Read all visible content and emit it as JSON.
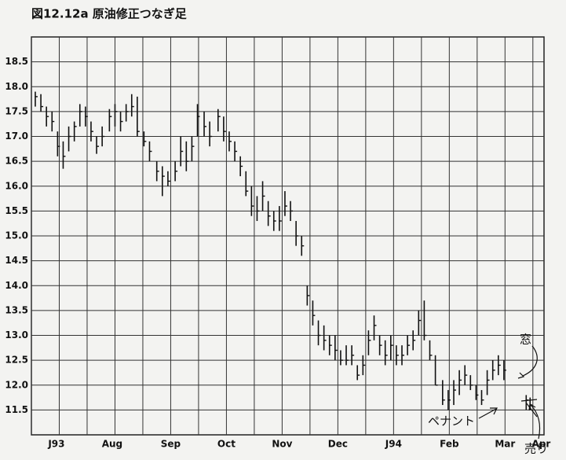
{
  "chart_data": {
    "type": "ohlc",
    "title": "図12.12a 原油修正つなぎ足",
    "color": "#111111",
    "grid": true,
    "xlim": [
      0,
      9.2
    ],
    "ylim": [
      11.0,
      19.0
    ],
    "xticks": [
      {
        "value": 0.45,
        "label": "J93"
      },
      {
        "value": 1.45,
        "label": "Aug"
      },
      {
        "value": 2.5,
        "label": "Sep"
      },
      {
        "value": 3.5,
        "label": "Oct"
      },
      {
        "value": 4.5,
        "label": "Nov"
      },
      {
        "value": 5.5,
        "label": "Dec"
      },
      {
        "value": 6.5,
        "label": "J94"
      },
      {
        "value": 7.5,
        "label": "Feb"
      },
      {
        "value": 8.5,
        "label": "Mar"
      },
      {
        "value": 9.15,
        "label": "Apr"
      }
    ],
    "yticks": [
      {
        "value": 11.5,
        "label": "11.5"
      },
      {
        "value": 12.0,
        "label": "12.0"
      },
      {
        "value": 12.5,
        "label": "12.5"
      },
      {
        "value": 13.0,
        "label": "13.0"
      },
      {
        "value": 13.5,
        "label": "13.5"
      },
      {
        "value": 14.0,
        "label": "14.0"
      },
      {
        "value": 14.5,
        "label": "14.5"
      },
      {
        "value": 15.0,
        "label": "15.0"
      },
      {
        "value": 15.5,
        "label": "15.5"
      },
      {
        "value": 16.0,
        "label": "16.0"
      },
      {
        "value": 16.5,
        "label": "16.5"
      },
      {
        "value": 17.0,
        "label": "17.0"
      },
      {
        "value": 17.5,
        "label": "17.5"
      },
      {
        "value": 18.0,
        "label": "18.0"
      },
      {
        "value": 18.5,
        "label": "18.5"
      }
    ],
    "annotations": [
      "窓",
      "ペナント",
      "売り"
    ],
    "bars": [
      {
        "x": 0.07,
        "high": 17.9,
        "low": 17.6,
        "close": 17.8
      },
      {
        "x": 0.17,
        "high": 17.85,
        "low": 17.5,
        "close": 17.6
      },
      {
        "x": 0.27,
        "high": 17.6,
        "low": 17.2,
        "close": 17.4
      },
      {
        "x": 0.37,
        "high": 17.5,
        "low": 17.1,
        "close": 17.3
      },
      {
        "x": 0.47,
        "high": 17.1,
        "low": 16.6,
        "close": 16.8
      },
      {
        "x": 0.57,
        "high": 16.9,
        "low": 16.35,
        "close": 16.6
      },
      {
        "x": 0.67,
        "high": 17.2,
        "low": 16.7,
        "close": 17.0
      },
      {
        "x": 0.77,
        "high": 17.3,
        "low": 16.9,
        "close": 17.2
      },
      {
        "x": 0.87,
        "high": 17.65,
        "low": 17.2,
        "close": 17.5
      },
      {
        "x": 0.97,
        "high": 17.6,
        "low": 17.2,
        "close": 17.4
      },
      {
        "x": 1.07,
        "high": 17.3,
        "low": 16.9,
        "close": 17.1
      },
      {
        "x": 1.17,
        "high": 17.0,
        "low": 16.65,
        "close": 16.8
      },
      {
        "x": 1.27,
        "high": 17.2,
        "low": 16.8,
        "close": 17.0
      },
      {
        "x": 1.4,
        "high": 17.55,
        "low": 17.1,
        "close": 17.4
      },
      {
        "x": 1.5,
        "high": 17.65,
        "low": 17.2,
        "close": 17.5
      },
      {
        "x": 1.6,
        "high": 17.5,
        "low": 17.1,
        "close": 17.3
      },
      {
        "x": 1.7,
        "high": 17.65,
        "low": 17.3,
        "close": 17.5
      },
      {
        "x": 1.8,
        "high": 17.85,
        "low": 17.4,
        "close": 17.6
      },
      {
        "x": 1.9,
        "high": 17.8,
        "low": 17.0,
        "close": 17.1
      },
      {
        "x": 2.02,
        "high": 17.1,
        "low": 16.8,
        "close": 16.9
      },
      {
        "x": 2.12,
        "high": 16.9,
        "low": 16.5,
        "close": 16.7
      },
      {
        "x": 2.25,
        "high": 16.5,
        "low": 16.1,
        "close": 16.3
      },
      {
        "x": 2.35,
        "high": 16.4,
        "low": 15.8,
        "close": 16.2
      },
      {
        "x": 2.45,
        "high": 16.3,
        "low": 16.0,
        "close": 16.1
      },
      {
        "x": 2.58,
        "high": 16.5,
        "low": 16.1,
        "close": 16.3
      },
      {
        "x": 2.68,
        "high": 17.0,
        "low": 16.4,
        "close": 16.7
      },
      {
        "x": 2.78,
        "high": 16.9,
        "low": 16.3,
        "close": 16.5
      },
      {
        "x": 2.88,
        "high": 17.0,
        "low": 16.5,
        "close": 16.8
      },
      {
        "x": 2.98,
        "high": 17.65,
        "low": 17.0,
        "close": 17.4
      },
      {
        "x": 3.1,
        "high": 17.5,
        "low": 17.0,
        "close": 17.2
      },
      {
        "x": 3.2,
        "high": 17.3,
        "low": 16.8,
        "close": 17.0
      },
      {
        "x": 3.35,
        "high": 17.55,
        "low": 17.1,
        "close": 17.4
      },
      {
        "x": 3.45,
        "high": 17.4,
        "low": 16.9,
        "close": 17.1
      },
      {
        "x": 3.55,
        "high": 17.1,
        "low": 16.7,
        "close": 16.9
      },
      {
        "x": 3.65,
        "high": 16.9,
        "low": 16.5,
        "close": 16.7
      },
      {
        "x": 3.75,
        "high": 16.6,
        "low": 16.2,
        "close": 16.4
      },
      {
        "x": 3.85,
        "high": 16.3,
        "low": 15.8,
        "close": 15.9
      },
      {
        "x": 3.95,
        "high": 16.0,
        "low": 15.4,
        "close": 15.6
      },
      {
        "x": 4.05,
        "high": 15.8,
        "low": 15.3,
        "close": 15.5
      },
      {
        "x": 4.15,
        "high": 16.1,
        "low": 15.5,
        "close": 15.8
      },
      {
        "x": 4.25,
        "high": 15.7,
        "low": 15.2,
        "close": 15.4
      },
      {
        "x": 4.35,
        "high": 15.5,
        "low": 15.1,
        "close": 15.3
      },
      {
        "x": 4.45,
        "high": 15.6,
        "low": 15.1,
        "close": 15.3
      },
      {
        "x": 4.55,
        "high": 15.9,
        "low": 15.4,
        "close": 15.6
      },
      {
        "x": 4.65,
        "high": 15.7,
        "low": 15.3,
        "close": 15.5
      },
      {
        "x": 4.75,
        "high": 15.3,
        "low": 14.8,
        "close": 15.0
      },
      {
        "x": 4.85,
        "high": 15.0,
        "low": 14.6,
        "close": 14.8
      },
      {
        "x": 4.95,
        "high": 14.0,
        "low": 13.6,
        "close": 13.8
      },
      {
        "x": 5.05,
        "high": 13.7,
        "low": 13.2,
        "close": 13.4
      },
      {
        "x": 5.15,
        "high": 13.3,
        "low": 12.8,
        "close": 13.0
      },
      {
        "x": 5.25,
        "high": 13.2,
        "low": 12.7,
        "close": 12.9
      },
      {
        "x": 5.35,
        "high": 13.0,
        "low": 12.6,
        "close": 12.8
      },
      {
        "x": 5.45,
        "high": 13.0,
        "low": 12.5,
        "close": 12.7
      },
      {
        "x": 5.55,
        "high": 12.7,
        "low": 12.4,
        "close": 12.5
      },
      {
        "x": 5.65,
        "high": 12.8,
        "low": 12.4,
        "close": 12.5
      },
      {
        "x": 5.75,
        "high": 12.8,
        "low": 12.4,
        "close": 12.6
      },
      {
        "x": 5.85,
        "high": 12.4,
        "low": 12.1,
        "close": 12.2
      },
      {
        "x": 5.95,
        "high": 12.6,
        "low": 12.2,
        "close": 12.4
      },
      {
        "x": 6.05,
        "high": 13.1,
        "low": 12.6,
        "close": 12.9
      },
      {
        "x": 6.15,
        "high": 13.4,
        "low": 12.9,
        "close": 13.2
      },
      {
        "x": 6.25,
        "high": 13.0,
        "low": 12.6,
        "close": 12.8
      },
      {
        "x": 6.35,
        "high": 12.9,
        "low": 12.4,
        "close": 12.6
      },
      {
        "x": 6.45,
        "high": 13.0,
        "low": 12.5,
        "close": 12.8
      },
      {
        "x": 6.55,
        "high": 12.8,
        "low": 12.4,
        "close": 12.6
      },
      {
        "x": 6.65,
        "high": 12.8,
        "low": 12.4,
        "close": 12.6
      },
      {
        "x": 6.75,
        "high": 13.0,
        "low": 12.6,
        "close": 12.8
      },
      {
        "x": 6.85,
        "high": 13.1,
        "low": 12.7,
        "close": 12.9
      },
      {
        "x": 6.95,
        "high": 13.5,
        "low": 13.0,
        "close": 13.3
      },
      {
        "x": 7.05,
        "high": 13.7,
        "low": 12.9,
        "close": 13.0
      },
      {
        "x": 7.15,
        "high": 12.9,
        "low": 12.5,
        "close": 12.6
      },
      {
        "x": 7.25,
        "high": 12.6,
        "low": 12.0,
        "close": 12.0
      },
      {
        "x": 7.38,
        "high": 12.1,
        "low": 11.6,
        "close": 11.7
      },
      {
        "x": 7.48,
        "high": 11.9,
        "low": 11.5,
        "close": 11.7
      },
      {
        "x": 7.58,
        "high": 12.1,
        "low": 11.6,
        "close": 11.9
      },
      {
        "x": 7.68,
        "high": 12.3,
        "low": 11.8,
        "close": 12.1
      },
      {
        "x": 7.78,
        "high": 12.4,
        "low": 12.0,
        "close": 12.2
      },
      {
        "x": 7.88,
        "high": 12.2,
        "low": 11.9,
        "close": 12.0
      },
      {
        "x": 7.98,
        "high": 12.0,
        "low": 11.7,
        "close": 11.8
      },
      {
        "x": 8.08,
        "high": 11.9,
        "low": 11.6,
        "close": 11.7
      },
      {
        "x": 8.18,
        "high": 12.3,
        "low": 11.8,
        "close": 12.1
      },
      {
        "x": 8.28,
        "high": 12.5,
        "low": 12.1,
        "close": 12.3
      },
      {
        "x": 8.38,
        "high": 12.6,
        "low": 12.2,
        "close": 12.4
      },
      {
        "x": 8.48,
        "high": 12.5,
        "low": 12.1,
        "close": 12.3
      },
      {
        "x": 8.88,
        "high": 11.8,
        "low": 11.5,
        "close": 11.7
      },
      {
        "x": 8.95,
        "high": 11.75,
        "low": 11.5,
        "close": 11.6
      }
    ]
  }
}
